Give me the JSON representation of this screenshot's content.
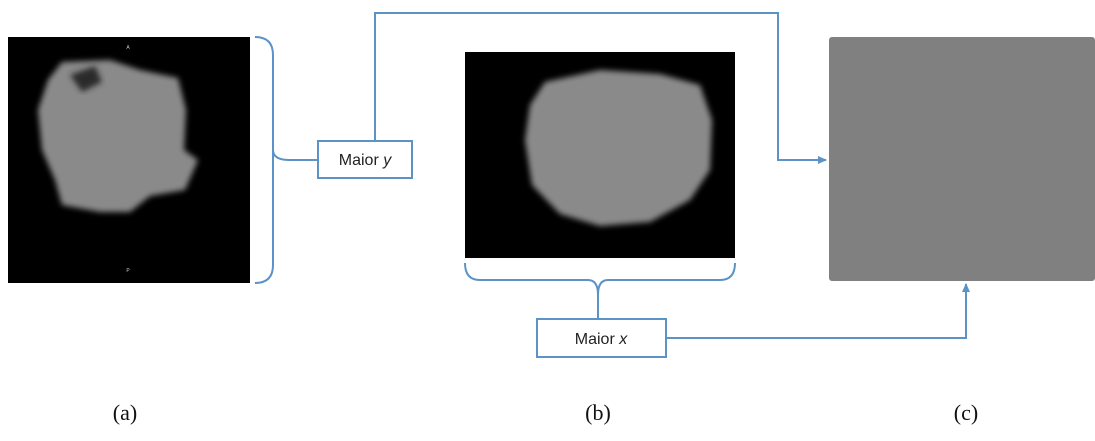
{
  "images": [
    {
      "top_marker": "A",
      "bottom_marker": "P"
    }
  ],
  "nodes": [
    {
      "label": "Maior",
      "variable": "y"
    },
    {
      "label": "Maior",
      "variable": "x"
    }
  ],
  "captions": [
    "(a)",
    "(b)",
    "(c)"
  ]
}
